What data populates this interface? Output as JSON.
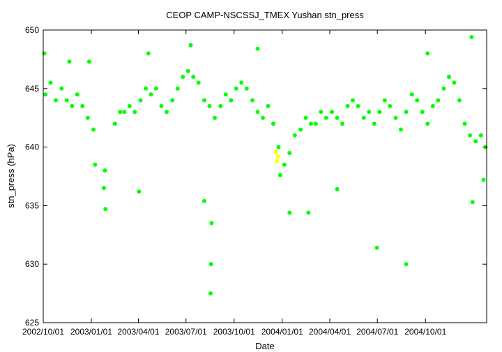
{
  "chart_data": {
    "type": "scatter",
    "title": "CEOP CAMP-NSCSSJ_TMEX Yushan  stn_press",
    "xlabel": "Date",
    "ylabel": "stn_press (hPa)",
    "x_range": [
      "2002-10-01",
      "2005-01-26"
    ],
    "ylim": [
      625,
      650
    ],
    "yticks": [
      625,
      630,
      635,
      640,
      645,
      650
    ],
    "xticks": [
      "2002/10/01",
      "2003/01/01",
      "2003/04/01",
      "2003/07/01",
      "2003/10/01",
      "2004/01/01",
      "2004/04/01",
      "2004/07/01",
      "2004/10/01"
    ],
    "grid": false,
    "legend": "none",
    "colors": {
      "main": "#00ff00",
      "flag": "#ffff00"
    },
    "series": [
      {
        "color": "#00ff00",
        "points": [
          [
            "2002-10-05",
            644.5
          ],
          [
            "2002-10-15",
            645.5
          ],
          [
            "2002-10-25",
            644.0
          ],
          [
            "2002-11-05",
            645.0
          ],
          [
            "2002-11-15",
            644.0
          ],
          [
            "2002-11-25",
            643.5
          ],
          [
            "2002-12-05",
            644.5
          ],
          [
            "2002-12-15",
            643.5
          ],
          [
            "2002-12-25",
            642.5
          ],
          [
            "2003-01-05",
            641.5
          ],
          [
            "2003-01-25",
            636.5
          ],
          [
            "2003-02-15",
            642.0
          ],
          [
            "2003-02-25",
            643.0
          ],
          [
            "2003-03-05",
            643.0
          ],
          [
            "2003-03-15",
            643.5
          ],
          [
            "2003-03-25",
            643.0
          ],
          [
            "2003-04-05",
            644.0
          ],
          [
            "2003-04-15",
            645.0
          ],
          [
            "2003-04-25",
            644.5
          ],
          [
            "2003-05-05",
            645.0
          ],
          [
            "2003-05-15",
            643.5
          ],
          [
            "2003-05-25",
            643.0
          ],
          [
            "2003-06-05",
            644.0
          ],
          [
            "2003-06-15",
            645.0
          ],
          [
            "2003-06-25",
            646.0
          ],
          [
            "2003-07-05",
            646.5
          ],
          [
            "2003-07-15",
            646.0
          ],
          [
            "2003-07-25",
            645.5
          ],
          [
            "2003-08-05",
            644.0
          ],
          [
            "2003-08-15",
            643.5
          ],
          [
            "2003-08-25",
            642.5
          ],
          [
            "2003-09-05",
            643.5
          ],
          [
            "2003-09-15",
            644.5
          ],
          [
            "2003-09-25",
            644.0
          ],
          [
            "2003-10-05",
            645.0
          ],
          [
            "2003-10-15",
            645.5
          ],
          [
            "2003-10-25",
            645.0
          ],
          [
            "2003-11-05",
            644.0
          ],
          [
            "2003-11-15",
            643.0
          ],
          [
            "2003-11-25",
            642.5
          ],
          [
            "2003-12-05",
            643.5
          ],
          [
            "2003-12-15",
            642.0
          ],
          [
            "2003-12-25",
            640.0
          ],
          [
            "2004-01-05",
            638.5
          ],
          [
            "2004-01-15",
            639.5
          ],
          [
            "2004-01-25",
            641.0
          ],
          [
            "2004-02-05",
            641.5
          ],
          [
            "2004-02-15",
            642.5
          ],
          [
            "2004-02-25",
            642.0
          ],
          [
            "2004-03-05",
            642.0
          ],
          [
            "2004-03-15",
            643.0
          ],
          [
            "2004-03-25",
            642.5
          ],
          [
            "2004-04-05",
            643.0
          ],
          [
            "2004-04-15",
            642.5
          ],
          [
            "2004-04-25",
            642.0
          ],
          [
            "2004-05-05",
            643.5
          ],
          [
            "2004-05-15",
            644.0
          ],
          [
            "2004-05-25",
            643.5
          ],
          [
            "2004-06-05",
            642.5
          ],
          [
            "2004-06-15",
            643.0
          ],
          [
            "2004-06-25",
            642.0
          ],
          [
            "2004-07-05",
            643.0
          ],
          [
            "2004-07-15",
            644.0
          ],
          [
            "2004-07-25",
            643.5
          ],
          [
            "2004-08-05",
            642.5
          ],
          [
            "2004-08-15",
            641.5
          ],
          [
            "2004-08-25",
            643.0
          ],
          [
            "2004-09-05",
            644.5
          ],
          [
            "2004-09-15",
            644.0
          ],
          [
            "2004-09-25",
            643.0
          ],
          [
            "2004-10-05",
            642.0
          ],
          [
            "2004-10-15",
            643.5
          ],
          [
            "2004-10-25",
            644.0
          ],
          [
            "2004-11-05",
            645.0
          ],
          [
            "2004-11-15",
            646.0
          ],
          [
            "2004-11-25",
            645.5
          ],
          [
            "2004-12-05",
            644.0
          ],
          [
            "2004-12-15",
            642.0
          ],
          [
            "2004-12-25",
            641.0
          ],
          [
            "2005-01-05",
            640.5
          ],
          [
            "2005-01-15",
            641.0
          ],
          [
            "2005-01-24",
            640.0
          ],
          [
            "2002-10-03",
            648.0
          ],
          [
            "2002-11-20",
            647.3
          ],
          [
            "2002-12-28",
            647.3
          ],
          [
            "2003-01-08",
            638.5
          ],
          [
            "2003-01-27",
            638.0
          ],
          [
            "2003-01-28",
            634.7
          ],
          [
            "2003-04-02",
            636.2
          ],
          [
            "2003-04-20",
            648.0
          ],
          [
            "2003-07-10",
            648.7
          ],
          [
            "2003-08-05",
            635.4
          ],
          [
            "2003-08-17",
            627.5
          ],
          [
            "2003-08-18",
            630.0
          ],
          [
            "2003-08-19",
            633.5
          ],
          [
            "2003-11-15",
            648.4
          ],
          [
            "2003-12-28",
            637.6
          ],
          [
            "2004-01-15",
            634.4
          ],
          [
            "2004-02-20",
            634.4
          ],
          [
            "2004-04-15",
            636.4
          ],
          [
            "2004-06-30",
            631.4
          ],
          [
            "2004-08-25",
            630.0
          ],
          [
            "2004-10-05",
            648.0
          ],
          [
            "2004-12-28",
            649.4
          ],
          [
            "2004-12-30",
            635.3
          ],
          [
            "2005-01-20",
            637.2
          ]
        ]
      },
      {
        "color": "#ffff00",
        "points": [
          [
            "2003-12-20",
            639.6
          ],
          [
            "2003-12-22",
            638.8
          ],
          [
            "2003-12-24",
            639.2
          ]
        ]
      }
    ]
  }
}
